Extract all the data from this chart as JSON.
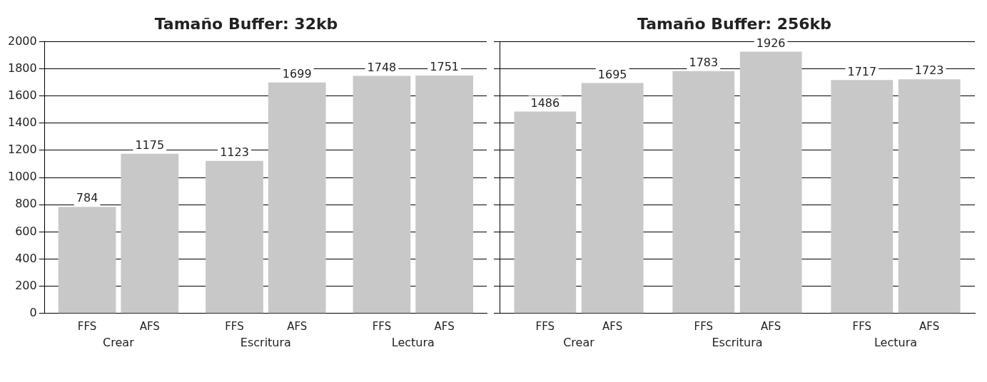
{
  "chart_data": [
    {
      "type": "bar",
      "title": "Tamaño Buffer: 32kb",
      "categories": [
        "Crear",
        "Escritura",
        "Lectura"
      ],
      "series": [
        {
          "name": "FFS",
          "color": "#c8c8c8",
          "values": [
            784,
            1123,
            1748
          ]
        },
        {
          "name": "AFS",
          "color": "#c8c8c8",
          "values": [
            1175,
            1699,
            1751
          ]
        }
      ],
      "ylim": [
        0,
        2000
      ],
      "yticks": [
        0,
        200,
        400,
        600,
        800,
        1000,
        1200,
        1400,
        1600,
        1800,
        2000
      ],
      "grid": "y",
      "data_labels": true
    },
    {
      "type": "bar",
      "title": "Tamaño Buffer: 256kb",
      "categories": [
        "Crear",
        "Escritura",
        "Lectura"
      ],
      "series": [
        {
          "name": "FFS",
          "color": "#c8c8c8",
          "values": [
            1486,
            1783,
            1717
          ]
        },
        {
          "name": "AFS",
          "color": "#c8c8c8",
          "values": [
            1695,
            1926,
            1723
          ]
        }
      ],
      "ylim": [
        0,
        2000
      ],
      "yticks": [
        0,
        200,
        400,
        600,
        800,
        1000,
        1200,
        1400,
        1600,
        1800,
        2000
      ],
      "grid": "y",
      "data_labels": true,
      "tick_labels": "x"
    }
  ]
}
